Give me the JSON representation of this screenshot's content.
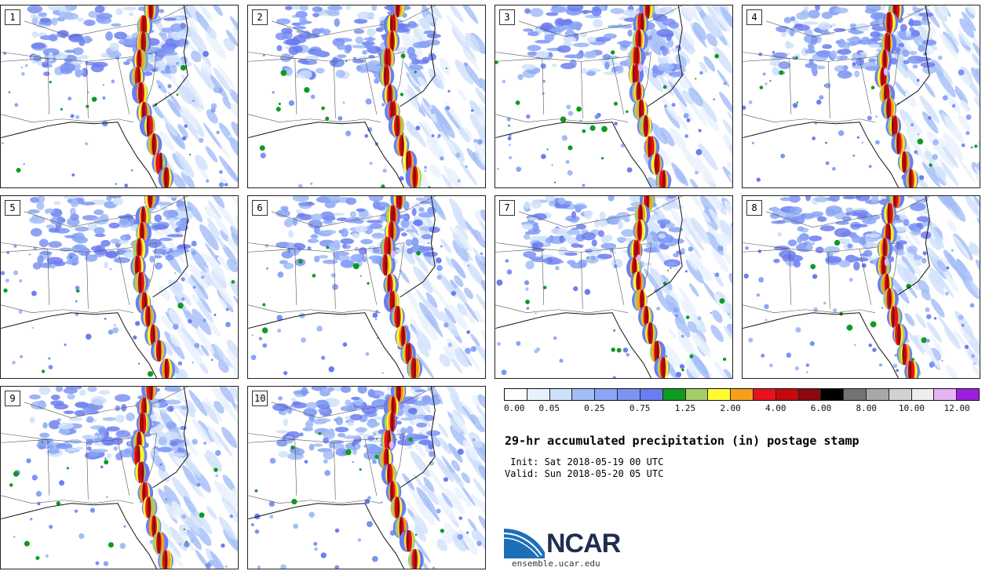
{
  "members": [
    {
      "label": "1"
    },
    {
      "label": "2"
    },
    {
      "label": "3"
    },
    {
      "label": "4"
    },
    {
      "label": "5"
    },
    {
      "label": "6"
    },
    {
      "label": "7"
    },
    {
      "label": "8"
    },
    {
      "label": "9"
    },
    {
      "label": "10"
    }
  ],
  "colorbar": {
    "colors": [
      "#ffffff",
      "#e8f1fd",
      "#cfe0fb",
      "#a3bdf7",
      "#8aa6f5",
      "#7b93f2",
      "#6c7df0",
      "#0e9b1f",
      "#a6cc6a",
      "#fffb32",
      "#f5a01a",
      "#e8121b",
      "#c3090f",
      "#8a0a0f",
      "#000000",
      "#737373",
      "#a8a8a8",
      "#d2d2d2",
      "#eeeeee",
      "#e4b4f4",
      "#9c1fe0"
    ],
    "tick_labels": [
      "0.00",
      "0.05",
      "0.25",
      "0.75",
      "1.25",
      "2.00",
      "4.00",
      "6.00",
      "8.00",
      "10.00",
      "12.00"
    ],
    "tick_positions_in_bins": [
      0,
      2,
      4,
      6,
      8,
      10,
      12,
      14,
      16,
      18,
      20
    ]
  },
  "title": "29-hr accumulated precipitation (in) postage stamp",
  "init_line": " Init: Sat 2018-05-19 00 UTC",
  "valid_line": "Valid: Sun 2018-05-20 05 UTC",
  "logo": {
    "text": "NCAR",
    "url": "ensemble.ucar.edu",
    "text_color": "#1e2d4f",
    "swoosh_color": "#1d6fb8"
  }
}
